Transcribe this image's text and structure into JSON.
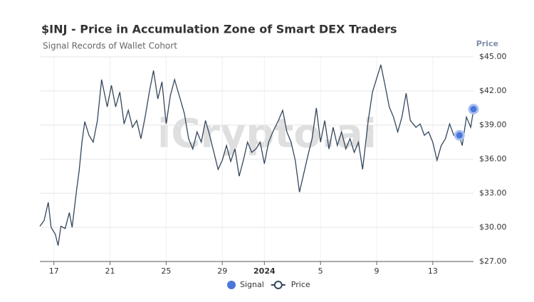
{
  "chart_data": {
    "type": "line",
    "title": "$INJ - Price in Accumulation Zone of Smart DEX Traders",
    "subtitle": "Signal Records of Wallet Cohort",
    "y_axis_label": "Price",
    "watermark": "iCrypto.ai",
    "xlim": [
      16,
      46.9
    ],
    "xticks": [
      17,
      21,
      25,
      29,
      {
        "value": 32,
        "label": "2024"
      },
      {
        "value": 36,
        "label": "5"
      },
      {
        "value": 40,
        "label": "9"
      },
      {
        "value": 44,
        "label": "13"
      }
    ],
    "ylim": [
      27,
      45
    ],
    "yticks": [
      {
        "value": 27,
        "label": "$27.00"
      },
      {
        "value": 30,
        "label": "$30.00"
      },
      {
        "value": 33,
        "label": "$33.00"
      },
      {
        "value": 36,
        "label": "$36.00"
      },
      {
        "value": 39,
        "label": "$39.00"
      },
      {
        "value": 42,
        "label": "$42.00"
      },
      {
        "value": 45,
        "label": "$45.00"
      }
    ],
    "grid": true,
    "legend": "bottom",
    "series": [
      {
        "name": "Signal",
        "type": "scatter",
        "color": "#4a77d9",
        "x": [
          45.9,
          46.9
        ],
        "values": [
          38.1,
          40.4
        ]
      },
      {
        "name": "Price",
        "type": "line",
        "color": "#34475c",
        "x": [
          16.0,
          16.3,
          16.6,
          16.8,
          17.1,
          17.3,
          17.5,
          17.8,
          18.1,
          18.3,
          18.6,
          18.8,
          19.0,
          19.2,
          19.5,
          19.8,
          20.1,
          20.4,
          20.8,
          21.1,
          21.4,
          21.7,
          22.0,
          22.3,
          22.6,
          22.9,
          23.2,
          23.5,
          23.8,
          24.1,
          24.4,
          24.7,
          25.0,
          25.3,
          25.6,
          26.0,
          26.3,
          26.6,
          26.9,
          27.2,
          27.5,
          27.8,
          28.1,
          28.4,
          28.7,
          29.0,
          29.3,
          29.6,
          29.9,
          30.2,
          30.5,
          30.8,
          31.1,
          31.4,
          31.7,
          32.0,
          32.3,
          32.6,
          33.0,
          33.3,
          33.6,
          33.9,
          34.2,
          34.5,
          34.8,
          35.1,
          35.4,
          35.7,
          36.0,
          36.3,
          36.6,
          36.9,
          37.2,
          37.5,
          37.8,
          38.1,
          38.4,
          38.7,
          39.0,
          39.4,
          39.7,
          40.0,
          40.3,
          40.6,
          40.9,
          41.2,
          41.5,
          41.8,
          42.1,
          42.4,
          42.8,
          43.1,
          43.4,
          43.7,
          44.0,
          44.3,
          44.6,
          44.9,
          45.2,
          45.5,
          45.8,
          46.1,
          46.4,
          46.7,
          46.9
        ],
        "values": [
          30.1,
          30.6,
          32.2,
          30.0,
          29.4,
          28.4,
          30.1,
          29.9,
          31.3,
          30.0,
          33.1,
          35.0,
          37.5,
          39.3,
          38.1,
          37.5,
          39.4,
          43.0,
          40.6,
          42.5,
          40.6,
          41.9,
          39.1,
          40.3,
          38.8,
          39.4,
          37.8,
          39.7,
          41.9,
          43.8,
          41.3,
          42.8,
          39.1,
          41.6,
          43.0,
          41.3,
          40.0,
          37.8,
          36.9,
          38.4,
          37.5,
          39.4,
          38.1,
          36.6,
          35.1,
          35.9,
          37.2,
          35.8,
          36.9,
          34.5,
          35.9,
          37.5,
          36.6,
          36.9,
          37.5,
          35.6,
          37.5,
          38.4,
          39.4,
          40.3,
          38.4,
          37.5,
          35.9,
          33.1,
          34.7,
          36.3,
          37.8,
          40.5,
          37.5,
          39.4,
          36.9,
          38.8,
          37.2,
          38.4,
          36.9,
          37.8,
          36.6,
          37.5,
          35.1,
          39.4,
          41.9,
          43.1,
          44.3,
          42.5,
          40.6,
          39.7,
          38.4,
          39.7,
          41.8,
          39.4,
          38.8,
          39.1,
          38.1,
          38.4,
          37.5,
          35.9,
          37.2,
          37.8,
          39.1,
          38.1,
          38.4,
          37.2,
          39.7,
          38.8,
          40.3
        ]
      }
    ]
  }
}
